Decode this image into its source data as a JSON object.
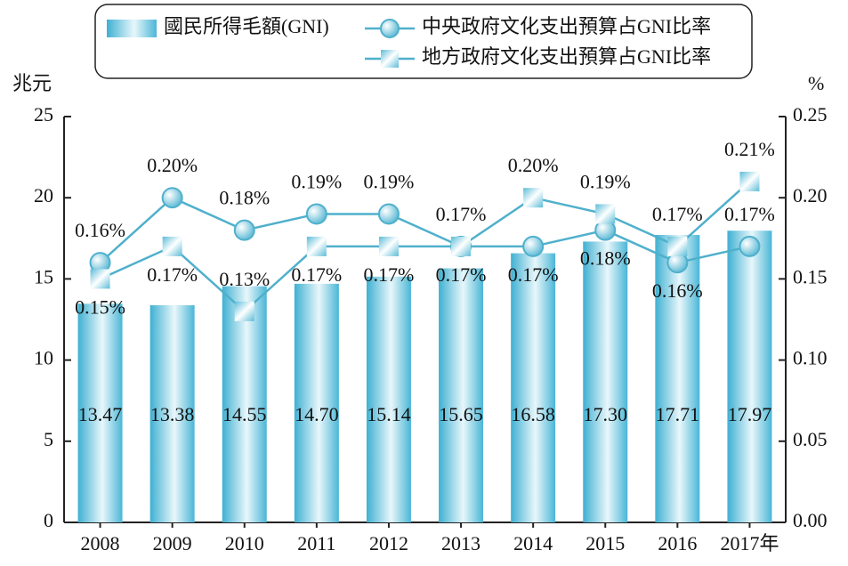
{
  "chart_data": {
    "type": "bar-line",
    "y_label": "兆元",
    "y2_label": "%",
    "categories": [
      "2008",
      "2009",
      "2010",
      "2011",
      "2012",
      "2013",
      "2014",
      "2015",
      "2016",
      "2017年"
    ],
    "ylim": [
      0,
      25
    ],
    "yticks": [
      0,
      5,
      10,
      15,
      20,
      25
    ],
    "y2lim": [
      0,
      0.25
    ],
    "y2ticks": [
      {
        "value": 0,
        "label": "0.00"
      },
      {
        "value": 0.05,
        "label": "0.05"
      },
      {
        "value": 0.1,
        "label": "0.10"
      },
      {
        "value": 0.15,
        "label": "0.15"
      },
      {
        "value": 0.2,
        "label": "0.20"
      },
      {
        "value": 0.25,
        "label": "0.25"
      }
    ],
    "series": [
      {
        "name": "國民所得毛額(GNI)",
        "kind": "bar",
        "color": "#5bbcd8",
        "values": [
          13.47,
          13.38,
          14.55,
          14.7,
          15.14,
          15.65,
          16.58,
          17.3,
          17.71,
          17.97
        ],
        "value_labels": [
          "13.47",
          "13.38",
          "14.55",
          "14.70",
          "15.14",
          "15.65",
          "16.58",
          "17.30",
          "17.71",
          "17.97"
        ]
      },
      {
        "name": "中央政府文化支出預算占GNI比率",
        "kind": "line",
        "marker": "circle",
        "axis": "y2",
        "color": "#4fb0cc",
        "values": [
          0.16,
          0.2,
          0.18,
          0.19,
          0.19,
          0.17,
          0.17,
          0.18,
          0.16,
          0.17
        ],
        "value_labels": [
          "0.16%",
          "0.20%",
          "0.18%",
          "0.19%",
          "0.19%",
          "0.17%",
          "0.17%",
          "0.18%",
          "0.16%",
          "0.17%"
        ]
      },
      {
        "name": "地方政府文化支出預算占GNI比率",
        "kind": "line",
        "marker": "square",
        "axis": "y2",
        "color": "#4fb0cc",
        "values": [
          0.15,
          0.17,
          0.13,
          0.17,
          0.17,
          0.17,
          0.2,
          0.19,
          0.17,
          0.21
        ],
        "value_labels": [
          "0.15%",
          "0.17%",
          "0.13%",
          "0.17%",
          "0.17%",
          "0.17%",
          "0.20%",
          "0.19%",
          "0.17%",
          "0.21%"
        ]
      }
    ]
  }
}
